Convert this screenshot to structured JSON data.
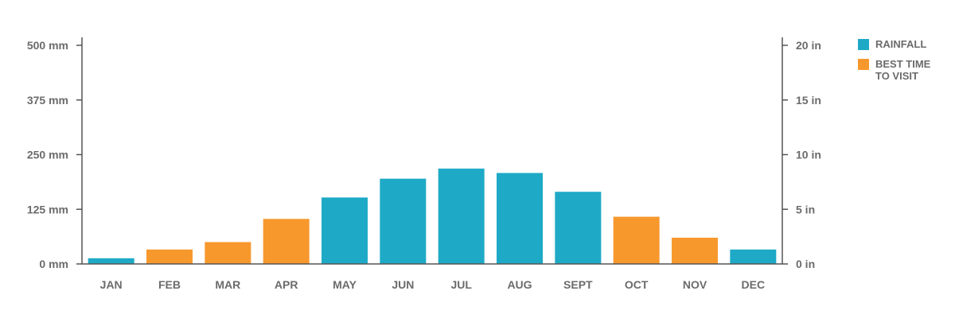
{
  "chart_data": {
    "type": "bar",
    "categories": [
      "JAN",
      "FEB",
      "MAR",
      "APR",
      "MAY",
      "JUN",
      "JUL",
      "AUG",
      "SEPT",
      "OCT",
      "NOV",
      "DEC"
    ],
    "values": [
      13,
      33,
      50,
      103,
      152,
      195,
      218,
      208,
      165,
      108,
      60,
      33
    ],
    "best_time": [
      false,
      true,
      true,
      true,
      false,
      false,
      false,
      false,
      false,
      true,
      true,
      false
    ],
    "left_axis": {
      "ticks": [
        0,
        125,
        250,
        375,
        500
      ],
      "tick_labels": [
        "0 mm",
        "125 mm",
        "250 mm",
        "375 mm",
        "500 mm"
      ],
      "ylim": [
        0,
        500
      ]
    },
    "right_axis": {
      "ticks": [
        0,
        5,
        10,
        15,
        20
      ],
      "tick_labels": [
        "0 in",
        "5 in",
        "10 in",
        "15 in",
        "20 in"
      ],
      "ylim": [
        0,
        20
      ]
    },
    "legend": [
      {
        "label": "RAINFALL",
        "color": "#1eaac6"
      },
      {
        "label": "BEST TIME\nTO VISIT",
        "color": "#f7982d"
      }
    ],
    "legend_position": "right",
    "grid": false
  }
}
